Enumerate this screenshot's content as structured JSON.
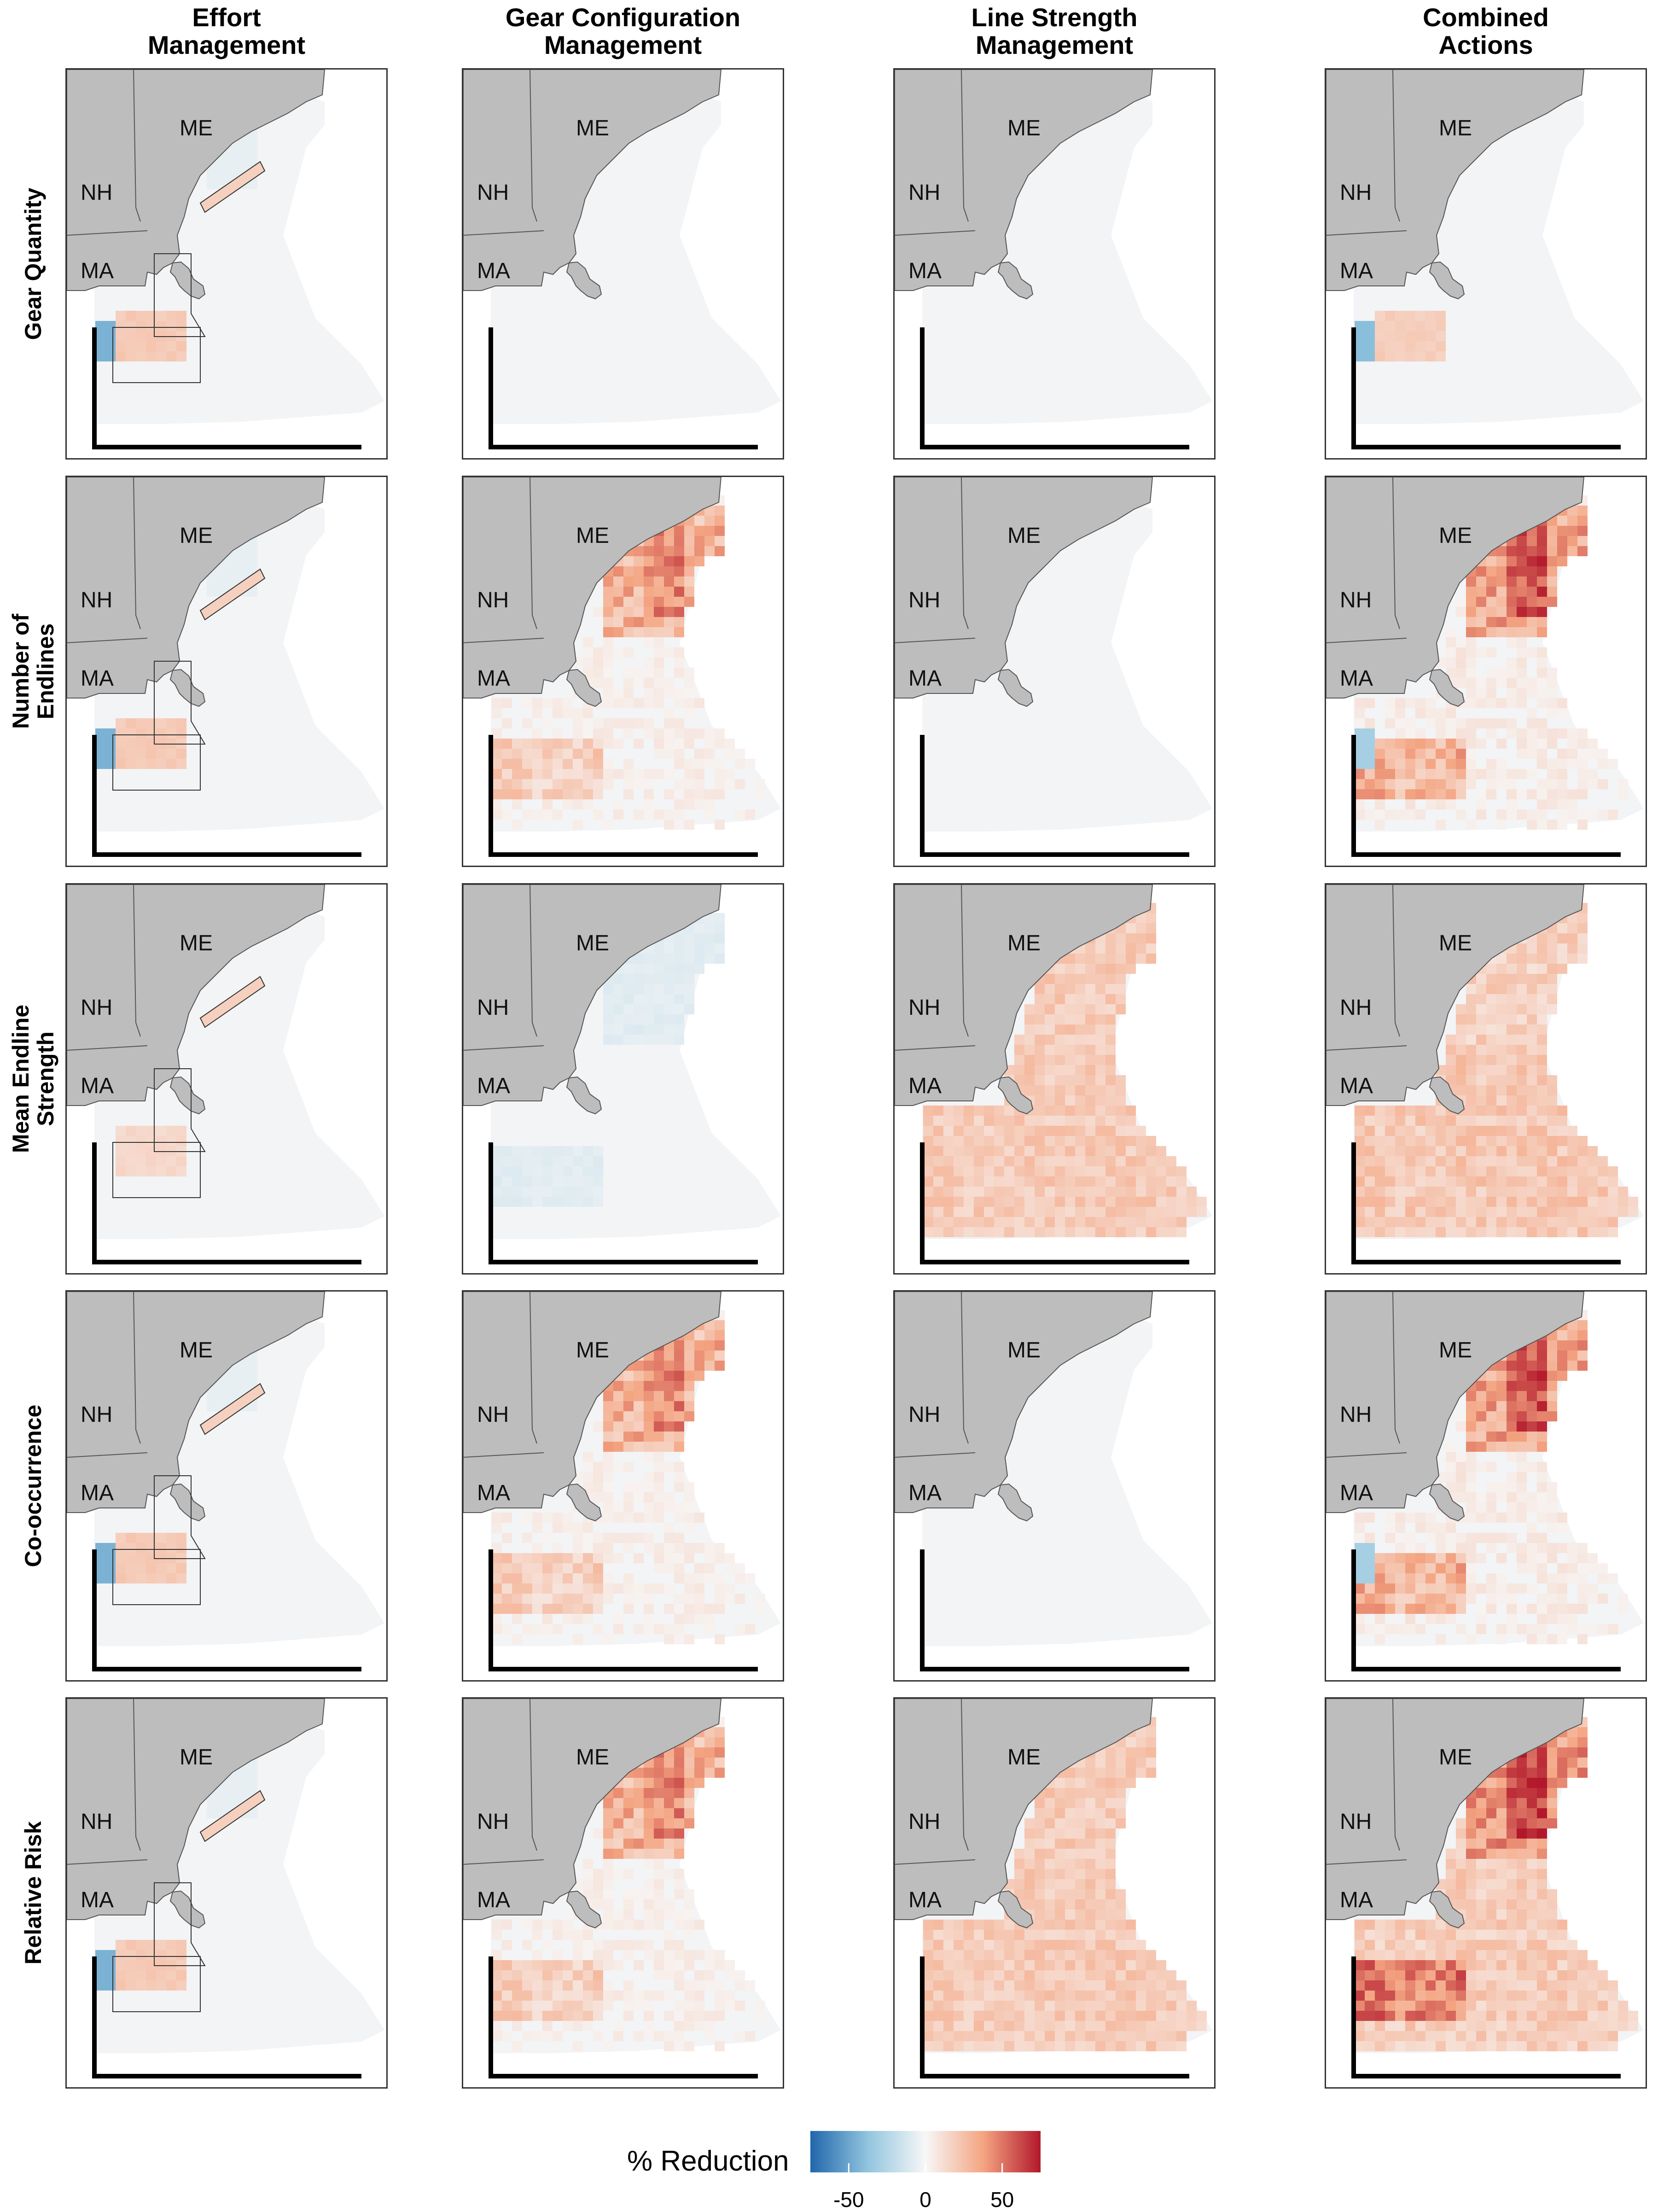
{
  "columns": [
    "Effort\nManagement",
    "Gear Configuration\nManagement",
    "Line Strength\nManagement",
    "Combined\nActions"
  ],
  "rows": [
    "Gear Quantity",
    "Number of\nEndlines",
    "Mean Endline\nStrength",
    "Co-occurrence",
    "Relative Risk"
  ],
  "state_labels": {
    "me": "ME",
    "nh": "NH",
    "ma": "MA"
  },
  "legend": {
    "title": "% Reduction",
    "ticks": [
      "-50",
      "0",
      "50"
    ],
    "tick_values": [
      -50,
      0,
      50
    ],
    "range": [
      -75,
      75
    ],
    "colors": [
      "#2166ac",
      "#92c5de",
      "#f7f7f7",
      "#f4a582",
      "#b2182b"
    ]
  },
  "colors": {
    "land": "#bdbdbd",
    "land_edge": "#555555",
    "sea_neutral": "#f2f4f6",
    "axis": "#000000"
  },
  "patterns": {
    "row_col": [
      [
        "effort",
        "none",
        "none",
        "combined_light"
      ],
      [
        "effort",
        "gearconfig",
        "none",
        "combined"
      ],
      [
        "effort_light",
        "slight_blue",
        "linestrength",
        "combined_ls"
      ],
      [
        "effort",
        "gearconfig",
        "none",
        "combined"
      ],
      [
        "effort",
        "gearconfig",
        "linestrength",
        "combined_strong"
      ]
    ]
  }
}
